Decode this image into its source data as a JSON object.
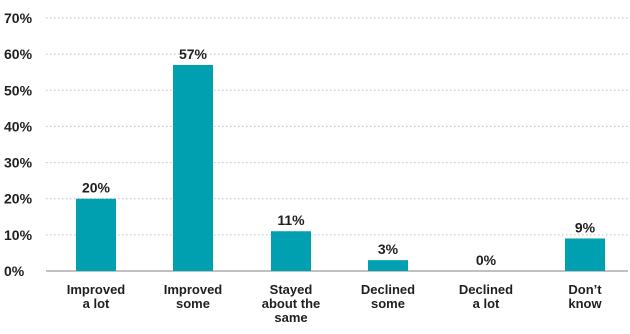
{
  "chart_data": {
    "type": "bar",
    "categories": [
      [
        "Improved",
        "a lot"
      ],
      [
        "Improved",
        "some"
      ],
      [
        "Stayed",
        "about the",
        "same"
      ],
      [
        "Declined",
        "some"
      ],
      [
        "Declined",
        "a lot"
      ],
      [
        "Don’t",
        "know"
      ]
    ],
    "values": [
      20,
      57,
      11,
      3,
      0,
      9
    ],
    "data_labels": [
      "20%",
      "57%",
      "11%",
      "3%",
      "0%",
      "9%"
    ],
    "y_ticks": [
      0,
      10,
      20,
      30,
      40,
      50,
      60,
      70
    ],
    "y_tick_labels": [
      "0%",
      "10%",
      "20%",
      "30%",
      "40%",
      "50%",
      "60%",
      "70%"
    ],
    "ylim": [
      0,
      70
    ],
    "grid": "horizontal dotted",
    "legend": "none",
    "colors": {
      "bar": "#00a0b0",
      "grid": "#bdbdbd",
      "axis": "#9a9a9a",
      "text": "#1f1f1f"
    }
  }
}
